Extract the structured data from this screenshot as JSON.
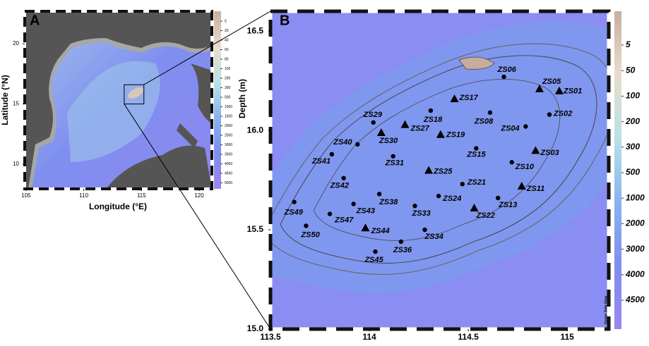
{
  "panel_a": {
    "label": "A",
    "xlabel": "Longitude (°E)",
    "ylabel": "Latitude (°N)",
    "xlim": [
      104.88,
      121.1
    ],
    "ylim": [
      7.95,
      22.7
    ],
    "xticks": [
      105,
      110,
      115,
      120
    ],
    "yticks": [
      10,
      15,
      20
    ],
    "colorbar_ticks": [
      5,
      20,
      40,
      60,
      80,
      100,
      200,
      300,
      500,
      1000,
      1500,
      2000,
      2500,
      3000,
      3500,
      4000,
      4500,
      5000
    ]
  },
  "panel_b": {
    "label": "B",
    "colorbar_label": "Depth (m)",
    "credit": "Ocean Data View",
    "xlim": [
      113.5,
      115.21
    ],
    "ylim": [
      15.0,
      16.6
    ],
    "xticks": [
      113.5,
      114,
      114.5,
      115
    ],
    "yticks": [
      {
        "value": 15,
        "label": "15.0"
      },
      15.5,
      {
        "value": 16,
        "label": "16.0"
      },
      16.5
    ],
    "colorbar_ticks": [
      5,
      50,
      100,
      200,
      300,
      500,
      1000,
      2000,
      3000,
      4000,
      4500
    ],
    "stations": [
      {
        "name": "ZS06",
        "lon": 114.68,
        "lat": 16.27,
        "marker": "dot"
      },
      {
        "name": "ZS05",
        "lon": 114.86,
        "lat": 16.21,
        "marker": "triangle"
      },
      {
        "name": "ZS01",
        "lon": 114.96,
        "lat": 16.2,
        "marker": "triangle"
      },
      {
        "name": "ZS17",
        "lon": 114.43,
        "lat": 16.16,
        "marker": "triangle"
      },
      {
        "name": "ZS02",
        "lon": 114.91,
        "lat": 16.08,
        "marker": "dot"
      },
      {
        "name": "ZS18",
        "lon": 114.31,
        "lat": 16.1,
        "marker": "dot"
      },
      {
        "name": "ZS08",
        "lon": 114.61,
        "lat": 16.09,
        "marker": "dot"
      },
      {
        "name": "ZS29",
        "lon": 114.02,
        "lat": 16.04,
        "marker": "dot"
      },
      {
        "name": "ZS27",
        "lon": 114.18,
        "lat": 16.03,
        "marker": "triangle"
      },
      {
        "name": "ZS04",
        "lon": 114.79,
        "lat": 16.02,
        "marker": "dot"
      },
      {
        "name": "ZS30",
        "lon": 114.06,
        "lat": 15.99,
        "marker": "triangle"
      },
      {
        "name": "ZS19",
        "lon": 114.36,
        "lat": 15.98,
        "marker": "triangle"
      },
      {
        "name": "ZS40",
        "lon": 113.94,
        "lat": 15.93,
        "marker": "dot"
      },
      {
        "name": "ZS15",
        "lon": 114.54,
        "lat": 15.91,
        "marker": "dot"
      },
      {
        "name": "ZS03",
        "lon": 114.84,
        "lat": 15.9,
        "marker": "triangle"
      },
      {
        "name": "ZS41",
        "lon": 113.81,
        "lat": 15.88,
        "marker": "dot"
      },
      {
        "name": "ZS31",
        "lon": 114.12,
        "lat": 15.87,
        "marker": "dot"
      },
      {
        "name": "ZS10",
        "lon": 114.72,
        "lat": 15.84,
        "marker": "dot"
      },
      {
        "name": "ZS25",
        "lon": 114.3,
        "lat": 15.8,
        "marker": "triangle"
      },
      {
        "name": "ZS42",
        "lon": 113.87,
        "lat": 15.76,
        "marker": "dot"
      },
      {
        "name": "ZS21",
        "lon": 114.47,
        "lat": 15.73,
        "marker": "dot"
      },
      {
        "name": "ZS11",
        "lon": 114.77,
        "lat": 15.72,
        "marker": "triangle"
      },
      {
        "name": "ZS38",
        "lon": 114.05,
        "lat": 15.68,
        "marker": "dot"
      },
      {
        "name": "ZS24",
        "lon": 114.35,
        "lat": 15.67,
        "marker": "dot"
      },
      {
        "name": "ZS13",
        "lon": 114.65,
        "lat": 15.66,
        "marker": "dot"
      },
      {
        "name": "ZS49",
        "lon": 113.62,
        "lat": 15.64,
        "marker": "dot"
      },
      {
        "name": "ZS43",
        "lon": 113.92,
        "lat": 15.63,
        "marker": "dot"
      },
      {
        "name": "ZS33",
        "lon": 114.23,
        "lat": 15.62,
        "marker": "dot"
      },
      {
        "name": "ZS22",
        "lon": 114.53,
        "lat": 15.61,
        "marker": "triangle"
      },
      {
        "name": "ZS47",
        "lon": 113.8,
        "lat": 15.58,
        "marker": "dot"
      },
      {
        "name": "ZS44",
        "lon": 113.98,
        "lat": 15.51,
        "marker": "triangle"
      },
      {
        "name": "ZS50",
        "lon": 113.68,
        "lat": 15.52,
        "marker": "dot"
      },
      {
        "name": "ZS34",
        "lon": 114.28,
        "lat": 15.5,
        "marker": "dot"
      },
      {
        "name": "ZS36",
        "lon": 114.16,
        "lat": 15.44,
        "marker": "dot"
      },
      {
        "name": "ZS45",
        "lon": 114.03,
        "lat": 15.39,
        "marker": "dot"
      }
    ]
  }
}
